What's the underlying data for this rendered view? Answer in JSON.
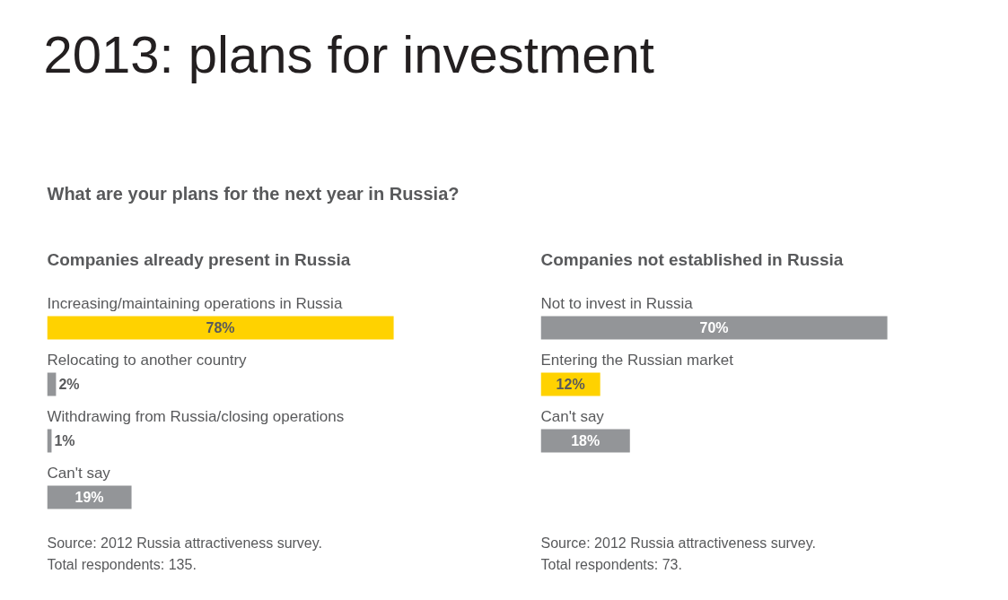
{
  "chart_data": [
    {
      "type": "other",
      "title": "2013: plans for investment",
      "subtitle": "What are your plans for the next year in Russia?"
    },
    {
      "type": "bar",
      "orientation": "horizontal",
      "title": "Companies already present in Russia",
      "categories": [
        "Increasing/maintaining operations in Russia",
        "Relocating to another country",
        "Withdrawing from Russia/closing operations",
        "Can't say"
      ],
      "values": [
        78,
        2,
        1,
        19
      ],
      "value_labels": [
        "78%",
        "2%",
        "1%",
        "19%"
      ],
      "colors": [
        "#ffd200",
        "#939598",
        "#939598",
        "#939598"
      ],
      "annotations": [
        "Source: 2012 Russia attractiveness survey.",
        "Total respondents: 135."
      ]
    },
    {
      "type": "bar",
      "orientation": "horizontal",
      "title": "Companies not established in Russia",
      "categories": [
        "Not to invest in Russia",
        "Entering the Russian market",
        "Can't say"
      ],
      "values": [
        70,
        12,
        18
      ],
      "value_labels": [
        "70%",
        "12%",
        "18%"
      ],
      "colors": [
        "#939598",
        "#ffd200",
        "#939598"
      ],
      "annotations": [
        "Source: 2012 Russia attractiveness survey.",
        "Total respondents: 73."
      ]
    }
  ]
}
